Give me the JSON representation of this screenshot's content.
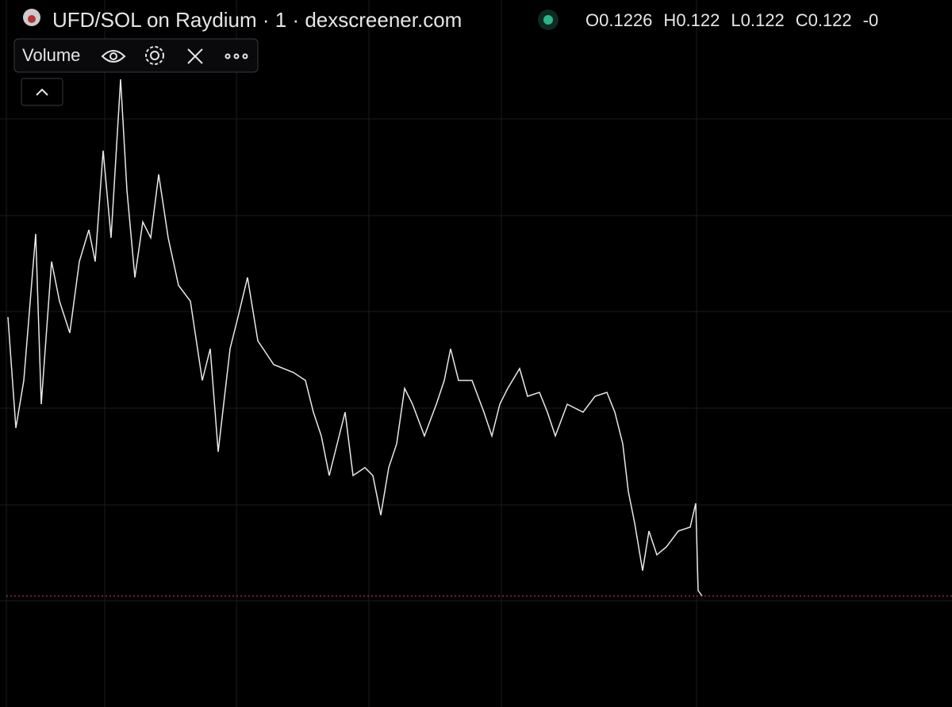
{
  "header": {
    "title": "UFD/SOL on Raydium · 1 · dexscreener.com",
    "ohlc": [
      {
        "label": "O",
        "value": 0.1226
      },
      {
        "label": "H",
        "value": 0.122
      },
      {
        "label": "L",
        "value": 0.122
      },
      {
        "label": "C",
        "value": 0.122
      }
    ],
    "change": "-0"
  },
  "indicator": {
    "name": "Volume"
  },
  "price": {
    "type": "line",
    "color": "#e8e8e8",
    "x": [
      1,
      2,
      3,
      4.5,
      5.2,
      6.5,
      7.5,
      8.8,
      10,
      11.2,
      12,
      13,
      14,
      15.2,
      16,
      17,
      18,
      19,
      20,
      21.2,
      22.5,
      24,
      25.5,
      26.5,
      27.5,
      29,
      30,
      31.2,
      32.5,
      34.5,
      37,
      38.5,
      39.5,
      40.5,
      41.5,
      42.5,
      43.5,
      44.5,
      46,
      47,
      48,
      49,
      50,
      51,
      52,
      53.5,
      55,
      56,
      56.8,
      57.8,
      59.5,
      61,
      62,
      63,
      64,
      65.5,
      66.5,
      68,
      69,
      70,
      71.5,
      73.5,
      75,
      76.5,
      77.5,
      78.5,
      79.2,
      80,
      81,
      81.8,
      82.8,
      84,
      85.5,
      87,
      87.7,
      88,
      88.5
    ],
    "values": [
      49.2,
      35.2,
      41.2,
      59.7,
      38.2,
      56.2,
      51.2,
      47.2,
      56.2,
      60.2,
      56.2,
      70.2,
      59.2,
      79.2,
      65.2,
      54.2,
      61.2,
      59.2,
      67.2,
      59.2,
      53.2,
      51.2,
      41.2,
      45.2,
      32.2,
      45.2,
      49.2,
      54.2,
      46.2,
      43.2,
      42.2,
      41.2,
      37.2,
      34.2,
      29.2,
      33.2,
      37.2,
      29.2,
      30.2,
      29.2,
      24.2,
      30.2,
      33.2,
      40.2,
      38.2,
      34.2,
      38.2,
      41.2,
      45.2,
      41.2,
      41.2,
      37.2,
      34.2,
      38.2,
      40.2,
      42.7,
      39.2,
      39.7,
      37.2,
      34.2,
      38.2,
      37.2,
      39.2,
      39.7,
      37.2,
      33.2,
      27.2,
      23.2,
      17.2,
      22.2,
      19.2,
      20.2,
      22.2,
      22.7,
      25.7,
      14.7,
      14.0
    ],
    "xlim": [
      0,
      120
    ],
    "ylim": [
      0,
      89.2
    ],
    "last_line_color": "#e0405a"
  }
}
